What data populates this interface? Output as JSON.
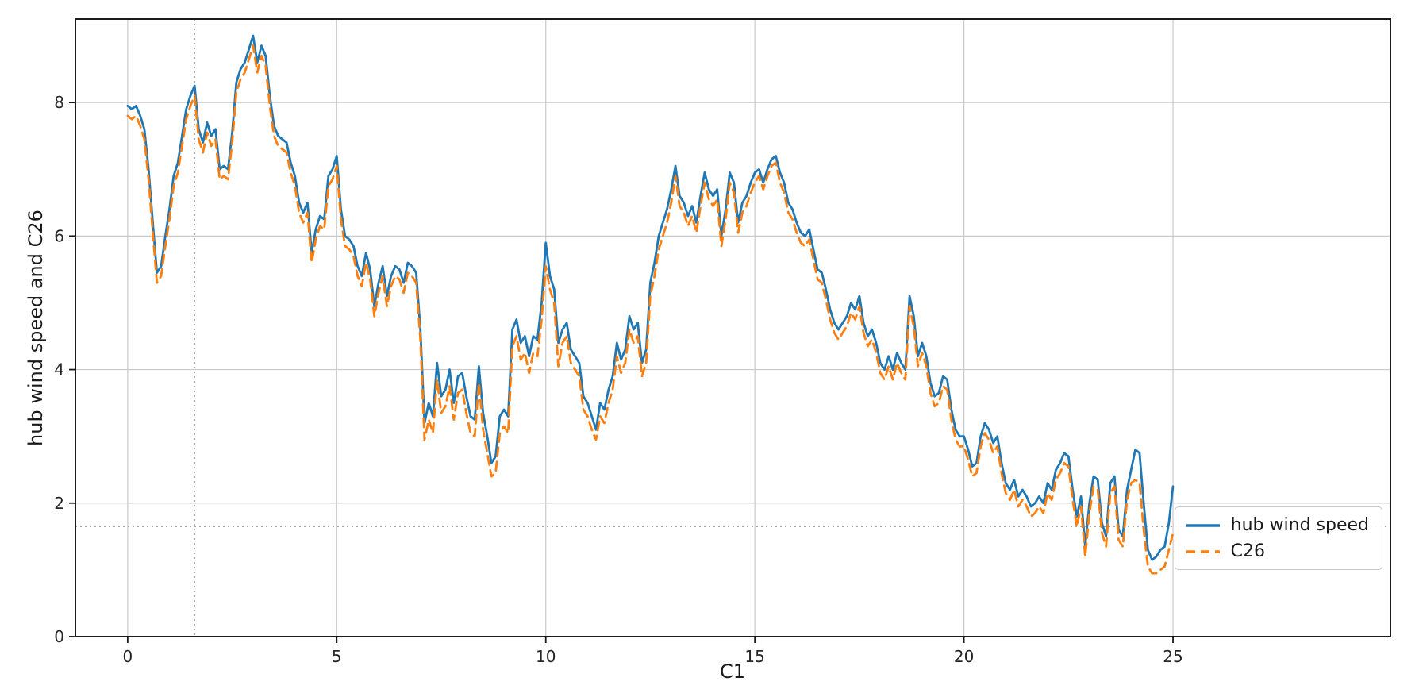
{
  "figure": {
    "background": "#ffffff",
    "spine_color": "#1a1a1a",
    "grid_color": "#c9c9c9",
    "reference_line_color": "#9a9a9a",
    "tick_label_color": "#262626"
  },
  "chart_data": {
    "type": "line",
    "title": "",
    "xlabel": "C1",
    "ylabel": "hub wind speed and C26",
    "xlim": [
      -1.25,
      30.2
    ],
    "ylim": [
      0,
      9.25
    ],
    "xticks": [
      0,
      5,
      10,
      15,
      20,
      25
    ],
    "yticks": [
      0,
      2,
      4,
      6,
      8
    ],
    "grid": true,
    "legend_position": "lower right",
    "reference_lines": {
      "x": 1.6,
      "y": 1.65
    },
    "x": {
      "start": 0,
      "step": 0.1,
      "count": 251
    },
    "series": [
      {
        "name": "hub wind speed",
        "color": "#1f77b4",
        "style": "solid",
        "values": [
          7.95,
          7.9,
          7.95,
          7.8,
          7.6,
          7.0,
          6.2,
          5.45,
          5.55,
          6.0,
          6.4,
          6.9,
          7.1,
          7.5,
          7.9,
          8.1,
          8.25,
          7.6,
          7.4,
          7.7,
          7.5,
          7.6,
          7.0,
          7.05,
          7.0,
          7.55,
          8.3,
          8.5,
          8.6,
          8.8,
          9.0,
          8.6,
          8.85,
          8.7,
          8.1,
          7.65,
          7.5,
          7.45,
          7.4,
          7.1,
          6.9,
          6.5,
          6.35,
          6.5,
          5.75,
          6.1,
          6.3,
          6.25,
          6.9,
          7.0,
          7.2,
          6.4,
          6.0,
          5.95,
          5.85,
          5.55,
          5.4,
          5.75,
          5.5,
          4.95,
          5.3,
          5.55,
          5.1,
          5.4,
          5.55,
          5.5,
          5.3,
          5.6,
          5.55,
          5.45,
          4.6,
          3.2,
          3.5,
          3.3,
          4.1,
          3.6,
          3.7,
          4.0,
          3.5,
          3.9,
          3.95,
          3.6,
          3.3,
          3.25,
          4.05,
          3.35,
          3.0,
          2.6,
          2.7,
          3.3,
          3.4,
          3.3,
          4.6,
          4.75,
          4.4,
          4.5,
          4.2,
          4.5,
          4.45,
          5.0,
          5.9,
          5.4,
          5.2,
          4.4,
          4.6,
          4.7,
          4.3,
          4.2,
          4.1,
          3.6,
          3.5,
          3.3,
          3.1,
          3.5,
          3.4,
          3.7,
          3.9,
          4.4,
          4.15,
          4.3,
          4.8,
          4.6,
          4.7,
          4.1,
          4.3,
          5.3,
          5.6,
          6.0,
          6.2,
          6.4,
          6.7,
          7.05,
          6.6,
          6.5,
          6.3,
          6.45,
          6.2,
          6.6,
          6.95,
          6.7,
          6.6,
          6.7,
          6.0,
          6.4,
          6.95,
          6.8,
          6.2,
          6.5,
          6.6,
          6.8,
          6.95,
          7.0,
          6.8,
          7.0,
          7.15,
          7.2,
          6.95,
          6.8,
          6.5,
          6.4,
          6.2,
          6.05,
          6.0,
          6.1,
          5.8,
          5.5,
          5.45,
          5.2,
          4.9,
          4.7,
          4.6,
          4.7,
          4.8,
          5.0,
          4.9,
          5.1,
          4.7,
          4.5,
          4.6,
          4.4,
          4.1,
          4.0,
          4.2,
          4.0,
          4.25,
          4.1,
          4.0,
          5.1,
          4.8,
          4.2,
          4.4,
          4.2,
          3.8,
          3.6,
          3.65,
          3.9,
          3.85,
          3.4,
          3.1,
          3.0,
          3.0,
          2.8,
          2.55,
          2.6,
          3.0,
          3.2,
          3.1,
          2.9,
          3.0,
          2.6,
          2.3,
          2.2,
          2.35,
          2.1,
          2.2,
          2.1,
          1.95,
          2.0,
          2.1,
          2.0,
          2.3,
          2.2,
          2.5,
          2.6,
          2.75,
          2.7,
          2.2,
          1.8,
          2.1,
          1.35,
          2.0,
          2.4,
          2.35,
          1.7,
          1.5,
          2.3,
          2.4,
          1.6,
          1.5,
          2.2,
          2.5,
          2.8,
          2.75,
          2.0,
          1.3,
          1.15,
          1.2,
          1.3,
          1.35,
          1.7,
          2.25
        ]
      },
      {
        "name": "C26",
        "color": "#ff7f0e",
        "style": "dashed",
        "values": [
          7.8,
          7.75,
          7.8,
          7.65,
          7.45,
          6.85,
          6.05,
          5.3,
          5.4,
          5.85,
          6.25,
          6.75,
          6.95,
          7.35,
          7.75,
          7.95,
          8.1,
          7.45,
          7.25,
          7.55,
          7.35,
          7.45,
          6.85,
          6.9,
          6.85,
          7.4,
          8.15,
          8.35,
          8.45,
          8.65,
          8.85,
          8.45,
          8.7,
          8.55,
          7.95,
          7.5,
          7.35,
          7.3,
          7.25,
          6.95,
          6.75,
          6.35,
          6.2,
          6.35,
          5.6,
          5.95,
          6.15,
          6.1,
          6.75,
          6.85,
          7.05,
          6.25,
          5.85,
          5.8,
          5.7,
          5.4,
          5.25,
          5.6,
          5.35,
          4.8,
          5.15,
          5.4,
          4.95,
          5.25,
          5.4,
          5.35,
          5.15,
          5.45,
          5.4,
          5.3,
          4.45,
          2.95,
          3.25,
          3.05,
          3.85,
          3.35,
          3.45,
          3.75,
          3.25,
          3.65,
          3.7,
          3.35,
          3.05,
          3.0,
          3.8,
          3.1,
          2.75,
          2.4,
          2.45,
          3.05,
          3.15,
          3.05,
          4.35,
          4.5,
          4.15,
          4.25,
          3.95,
          4.25,
          4.2,
          4.75,
          5.55,
          5.2,
          5.0,
          4.05,
          4.4,
          4.5,
          4.1,
          4.0,
          3.9,
          3.4,
          3.3,
          3.1,
          2.95,
          3.3,
          3.2,
          3.5,
          3.7,
          4.2,
          3.95,
          4.1,
          4.6,
          4.4,
          4.5,
          3.9,
          4.1,
          5.1,
          5.4,
          5.8,
          6.0,
          6.2,
          6.5,
          6.9,
          6.45,
          6.35,
          6.15,
          6.3,
          6.05,
          6.45,
          6.8,
          6.55,
          6.45,
          6.55,
          5.85,
          6.25,
          6.8,
          6.65,
          6.05,
          6.35,
          6.45,
          6.65,
          6.8,
          6.9,
          6.7,
          6.9,
          7.05,
          7.1,
          6.8,
          6.65,
          6.35,
          6.25,
          6.05,
          5.9,
          5.85,
          5.95,
          5.65,
          5.35,
          5.3,
          5.05,
          4.75,
          4.55,
          4.45,
          4.55,
          4.65,
          4.85,
          4.75,
          4.95,
          4.55,
          4.35,
          4.45,
          4.25,
          3.95,
          3.85,
          4.05,
          3.85,
          4.1,
          3.95,
          3.85,
          4.95,
          4.65,
          4.05,
          4.25,
          4.05,
          3.65,
          3.45,
          3.5,
          3.75,
          3.7,
          3.25,
          2.95,
          2.85,
          2.85,
          2.65,
          2.4,
          2.45,
          2.85,
          3.05,
          2.95,
          2.75,
          2.85,
          2.45,
          2.15,
          2.05,
          2.2,
          1.95,
          2.05,
          1.95,
          1.8,
          1.85,
          1.95,
          1.85,
          2.15,
          2.05,
          2.35,
          2.45,
          2.6,
          2.55,
          2.05,
          1.65,
          1.95,
          1.2,
          1.85,
          2.25,
          2.2,
          1.55,
          1.35,
          2.15,
          2.25,
          1.45,
          1.35,
          2.05,
          2.3,
          2.35,
          2.3,
          1.6,
          1.05,
          0.95,
          0.95,
          1.0,
          1.05,
          1.3,
          1.55
        ]
      }
    ]
  }
}
